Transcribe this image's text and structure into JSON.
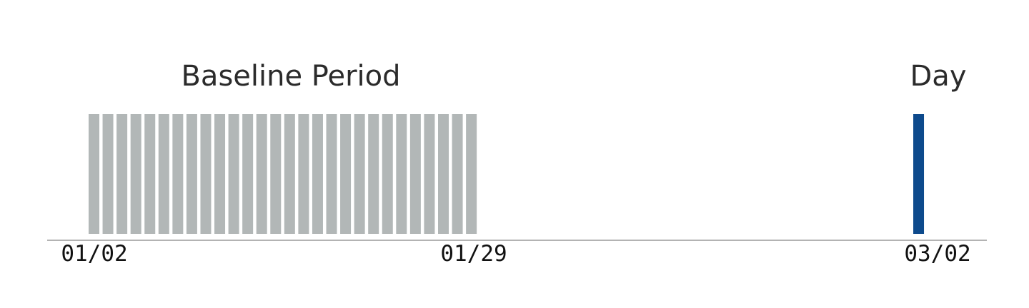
{
  "chart_data": {
    "type": "bar",
    "x_axis": {
      "type": "date",
      "range": [
        "01/02",
        "03/02"
      ],
      "tick_labels": [
        "01/02",
        "01/29",
        "03/02"
      ]
    },
    "series": [
      {
        "name": "Baseline Period",
        "color": "#b2b7b7",
        "start": "01/02",
        "end": "01/29",
        "days": [
          "01/02",
          "01/03",
          "01/04",
          "01/05",
          "01/06",
          "01/07",
          "01/08",
          "01/09",
          "01/10",
          "01/11",
          "01/12",
          "01/13",
          "01/14",
          "01/15",
          "01/16",
          "01/17",
          "01/18",
          "01/19",
          "01/20",
          "01/21",
          "01/22",
          "01/23",
          "01/24",
          "01/25",
          "01/26",
          "01/27",
          "01/28",
          "01/29"
        ],
        "value": 1
      },
      {
        "name": "Day",
        "color": "#0d4a8c",
        "days": [
          "03/02"
        ],
        "value": 1
      }
    ],
    "grid": false,
    "legend": "none"
  }
}
